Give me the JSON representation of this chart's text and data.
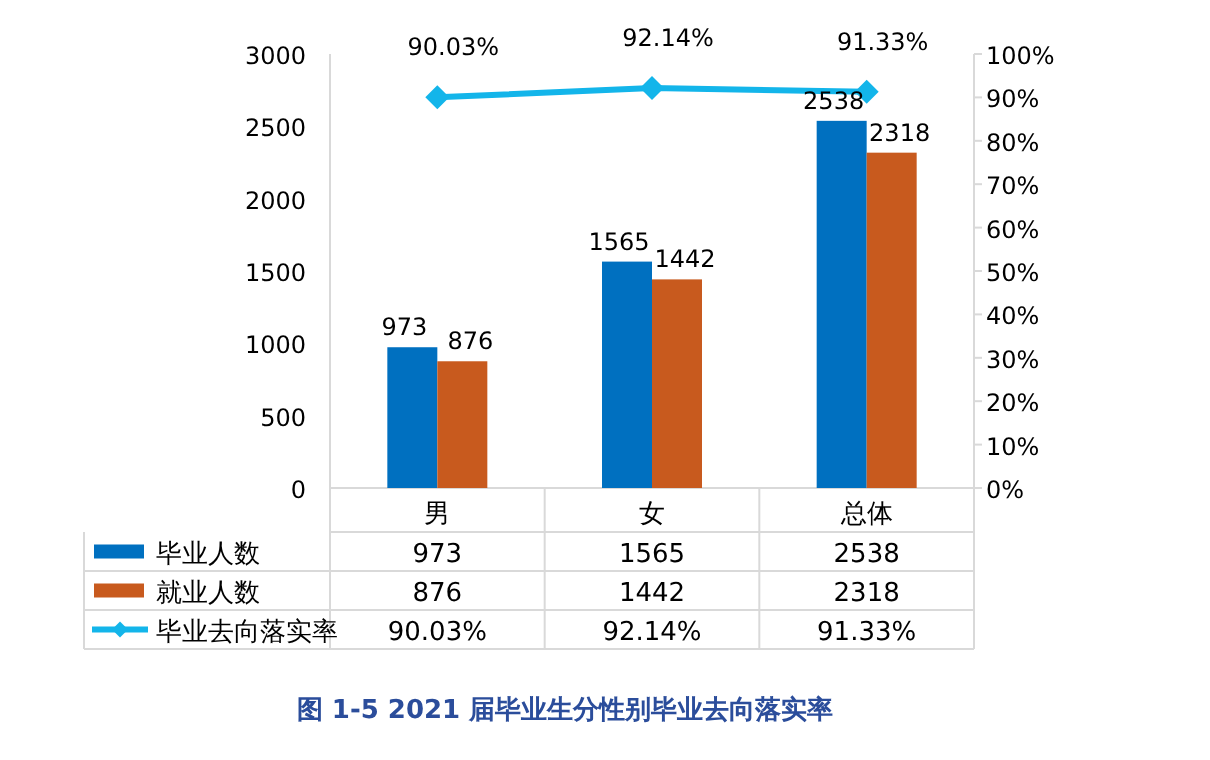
{
  "chart_data": {
    "type": "bar",
    "title": "图 1-5 2021 届毕业生分性别毕业去向落实率",
    "categories": [
      "男",
      "女",
      "总体"
    ],
    "series": [
      {
        "name": "毕业人数",
        "color": "#0070c0",
        "values": [
          973,
          1565,
          2538
        ],
        "value_labels": [
          "973",
          "1565",
          "2538"
        ]
      },
      {
        "name": "就业人数",
        "color": "#c85a1e",
        "values": [
          876,
          1442,
          2318
        ],
        "value_labels": [
          "876",
          "1442",
          "2318"
        ]
      },
      {
        "name": "毕业去向落实率",
        "type": "line",
        "axis": "y2",
        "color": "#13b5ea",
        "marker": "diamond",
        "values": [
          90.03,
          92.14,
          91.33
        ],
        "value_labels": [
          "90.03%",
          "92.14%",
          "91.33%"
        ]
      }
    ],
    "ylim": [
      0,
      3000
    ],
    "yticks": [
      0,
      500,
      1000,
      1500,
      2000,
      2500,
      3000
    ],
    "y2lim": [
      0,
      100
    ],
    "y2ticks": [
      {
        "value": 0,
        "label": "0%"
      },
      {
        "value": 10,
        "label": "10%"
      },
      {
        "value": 20,
        "label": "20%"
      },
      {
        "value": 30,
        "label": "30%"
      },
      {
        "value": 40,
        "label": "40%"
      },
      {
        "value": 50,
        "label": "50%"
      },
      {
        "value": 60,
        "label": "60%"
      },
      {
        "value": 70,
        "label": "70%"
      },
      {
        "value": 80,
        "label": "80%"
      },
      {
        "value": 90,
        "label": "90%"
      },
      {
        "value": 100,
        "label": "100%"
      }
    ],
    "data_labels": true,
    "grid": false,
    "legend": "bottom left"
  }
}
